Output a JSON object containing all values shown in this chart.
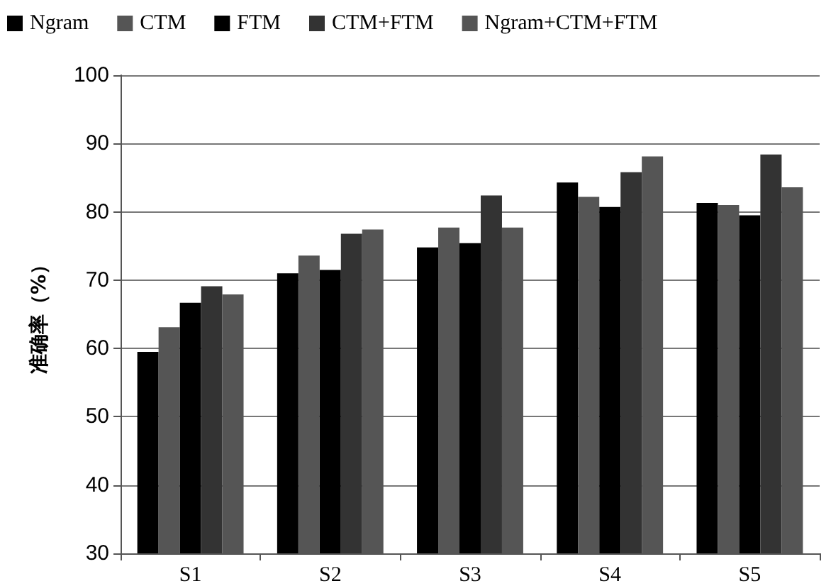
{
  "chart_data": {
    "type": "bar",
    "ylabel": "准确率（%）",
    "categories": [
      "S1",
      "S2",
      "S3",
      "S4",
      "S5"
    ],
    "series": [
      {
        "name": "Ngram",
        "color": "#000000",
        "values": [
          59.5,
          71,
          74.8,
          84.3,
          81.3
        ]
      },
      {
        "name": "CTM",
        "color": "#555555",
        "values": [
          63.1,
          73.6,
          77.7,
          82.2,
          81
        ]
      },
      {
        "name": "FTM",
        "color": "#000000",
        "values": [
          66.7,
          71.5,
          75.4,
          80.7,
          79.5
        ]
      },
      {
        "name": "CTM+FTM",
        "color": "#333333",
        "values": [
          69.1,
          76.8,
          82.4,
          85.8,
          88.4
        ]
      },
      {
        "name": "Ngram+CTM+FTM",
        "color": "#555555",
        "values": [
          67.9,
          77.4,
          77.7,
          88.1,
          83.6
        ]
      }
    ],
    "ylim": [
      30,
      100
    ],
    "yticks": [
      30,
      40,
      50,
      60,
      70,
      80,
      90,
      100
    ],
    "grid": "y",
    "legend": "top left"
  }
}
